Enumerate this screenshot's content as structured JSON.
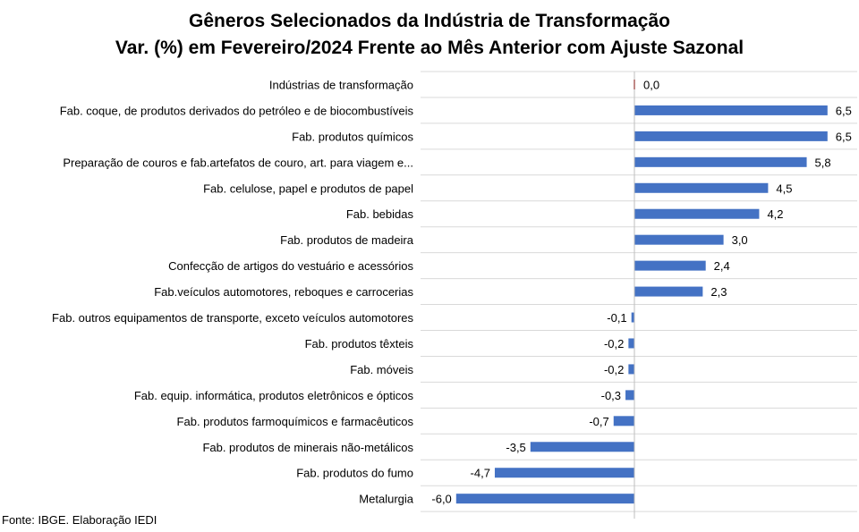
{
  "chart_data": {
    "type": "bar",
    "orientation": "horizontal",
    "title": "Gêneros Selecionados da Indústria de Transformação",
    "subtitle": "Var. (%) em Fevereiro/2024 Frente ao Mês Anterior com Ajuste Sazonal",
    "categories": [
      "Indústrias de transformação",
      "Fab. coque, de produtos derivados do petróleo e de biocombustíveis",
      "Fab. produtos químicos",
      "Preparação de couros e fab.artefatos de couro, art. para viagem e...",
      "Fab. celulose, papel e produtos de papel",
      "Fab. bebidas",
      "Fab. produtos de madeira",
      "Confecção de artigos do vestuário e acessórios",
      "Fab.veículos automotores, reboques e carrocerias",
      "Fab. outros equipamentos de transporte, exceto veículos automotores",
      "Fab. produtos têxteis",
      "Fab. móveis",
      "Fab. equip. informática, produtos eletrônicos e ópticos",
      "Fab. produtos farmoquímicos e farmacêuticos",
      "Fab. produtos de minerais não-metálicos",
      "Fab. produtos do fumo",
      "Metalurgia"
    ],
    "values": [
      0.0,
      6.5,
      6.5,
      5.8,
      4.5,
      4.2,
      3.0,
      2.4,
      2.3,
      -0.1,
      -0.2,
      -0.2,
      -0.3,
      -0.7,
      -3.5,
      -4.7,
      -6.0
    ],
    "value_labels": [
      "0,0",
      "6,5",
      "6,5",
      "5,8",
      "4,5",
      "4,2",
      "3,0",
      "2,4",
      "2,3",
      "-0,1",
      "-0,2",
      "-0,2",
      "-0,3",
      "-0,7",
      "-3,5",
      "-4,7",
      "-6,0"
    ],
    "xlim": [
      -6.0,
      6.5
    ],
    "grid": true,
    "bar_color": "#4472C4",
    "highlight_color": "#C0504D",
    "gridline_color": "#D9D9D9"
  },
  "source": "Fonte: IBGE. Elaboração IEDI"
}
